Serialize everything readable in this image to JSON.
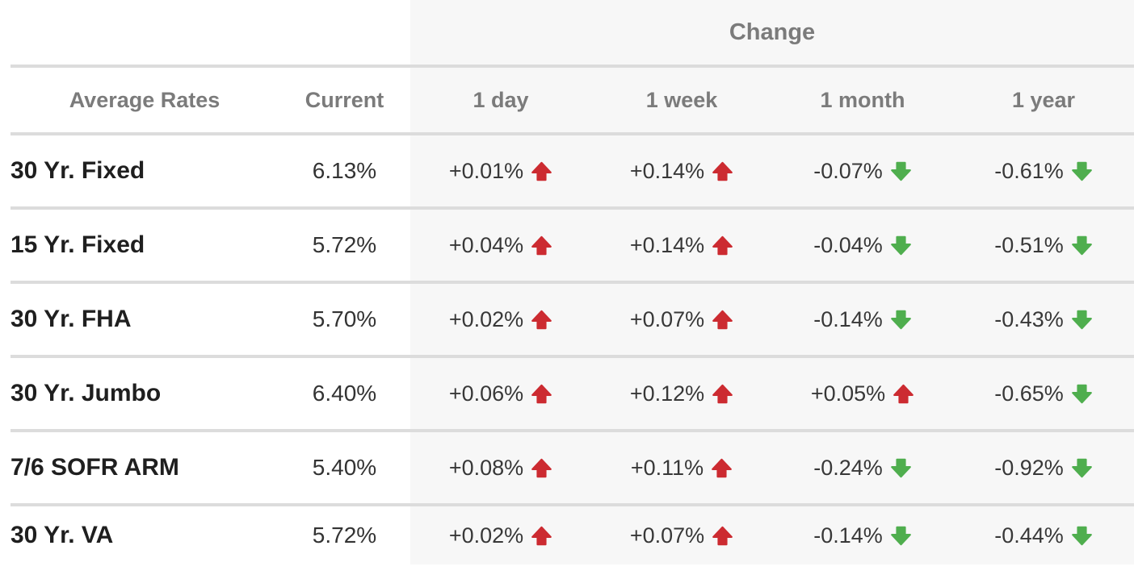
{
  "chart_data": {
    "type": "table",
    "group_header": "Change",
    "columns": [
      "Average Rates",
      "Current",
      "1 day",
      "1 week",
      "1 month",
      "1 year"
    ],
    "rows": [
      {
        "label": "30 Yr. Fixed",
        "current": "6.13%",
        "changes": [
          {
            "value": "+0.01%",
            "dir": "up"
          },
          {
            "value": "+0.14%",
            "dir": "up"
          },
          {
            "value": "-0.07%",
            "dir": "down"
          },
          {
            "value": "-0.61%",
            "dir": "down"
          }
        ]
      },
      {
        "label": "15 Yr. Fixed",
        "current": "5.72%",
        "changes": [
          {
            "value": "+0.04%",
            "dir": "up"
          },
          {
            "value": "+0.14%",
            "dir": "up"
          },
          {
            "value": "-0.04%",
            "dir": "down"
          },
          {
            "value": "-0.51%",
            "dir": "down"
          }
        ]
      },
      {
        "label": "30 Yr. FHA",
        "current": "5.70%",
        "changes": [
          {
            "value": "+0.02%",
            "dir": "up"
          },
          {
            "value": "+0.07%",
            "dir": "up"
          },
          {
            "value": "-0.14%",
            "dir": "down"
          },
          {
            "value": "-0.43%",
            "dir": "down"
          }
        ]
      },
      {
        "label": "30 Yr. Jumbo",
        "current": "6.40%",
        "changes": [
          {
            "value": "+0.06%",
            "dir": "up"
          },
          {
            "value": "+0.12%",
            "dir": "up"
          },
          {
            "value": "+0.05%",
            "dir": "up"
          },
          {
            "value": "-0.65%",
            "dir": "down"
          }
        ]
      },
      {
        "label": "7/6 SOFR ARM",
        "current": "5.40%",
        "changes": [
          {
            "value": "+0.08%",
            "dir": "up"
          },
          {
            "value": "+0.11%",
            "dir": "up"
          },
          {
            "value": "-0.24%",
            "dir": "down"
          },
          {
            "value": "-0.92%",
            "dir": "down"
          }
        ]
      },
      {
        "label": "30 Yr. VA",
        "current": "5.72%",
        "changes": [
          {
            "value": "+0.02%",
            "dir": "up"
          },
          {
            "value": "+0.07%",
            "dir": "up"
          },
          {
            "value": "-0.14%",
            "dir": "down"
          },
          {
            "value": "-0.44%",
            "dir": "down"
          }
        ]
      }
    ]
  },
  "colors": {
    "up_arrow": "#cc2b31",
    "down_arrow": "#4fae4e",
    "header_text": "#7b7b7b",
    "divider": "#dcdcdc",
    "change_bg": "#f7f7f7"
  }
}
